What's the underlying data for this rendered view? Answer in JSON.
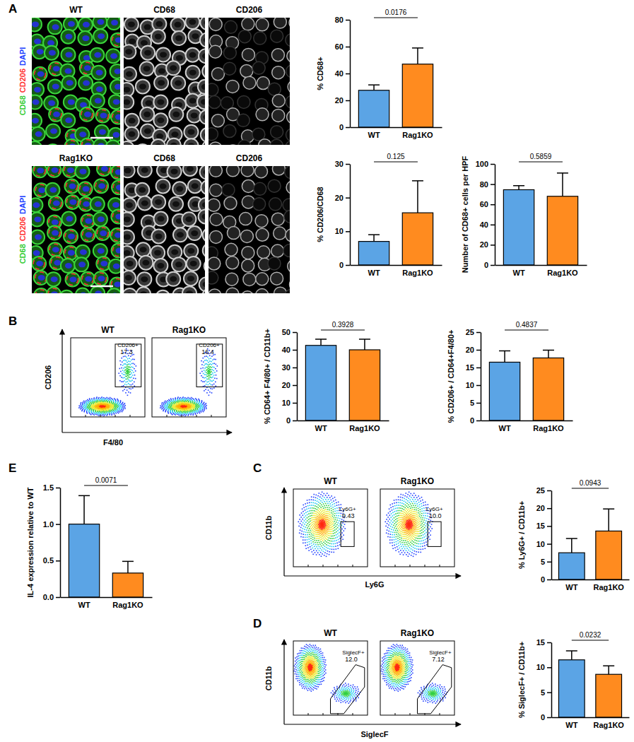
{
  "panel_letters": [
    "A",
    "B",
    "C",
    "D",
    "E"
  ],
  "microscopy": {
    "rows": [
      {
        "label": "WT",
        "channels": [
          "CD68",
          "CD206"
        ]
      },
      {
        "label": "Rag1KO",
        "channels": [
          "CD68",
          "CD206"
        ]
      }
    ],
    "merge_stains": [
      {
        "text": "CD68",
        "color": "#33cc33"
      },
      {
        "text": "CD206",
        "color": "#ff3030"
      },
      {
        "text": "DAPI",
        "color": "#2040ff"
      }
    ]
  },
  "flow": [
    {
      "xlabel": "F4/80",
      "ylabel": "CD206",
      "plots": [
        {
          "title": "WT",
          "gate": "CD206+",
          "gate_value": "17.3"
        },
        {
          "title": "Rag1KO",
          "gate": "CD206+",
          "gate_value": "16.4"
        }
      ]
    },
    {
      "xlabel": "Ly6G",
      "ylabel": "CD11b",
      "plots": [
        {
          "title": "WT",
          "gate": "Ly6G+",
          "gate_value": "9.43"
        },
        {
          "title": "Rag1KO",
          "gate": "Ly6G+",
          "gate_value": "10.0"
        }
      ]
    },
    {
      "xlabel": "SiglecF",
      "ylabel": "CD11b",
      "plots": [
        {
          "title": "WT",
          "gate": "SiglecF+",
          "gate_value": "12.0"
        },
        {
          "title": "Rag1KO",
          "gate": "SiglecF+",
          "gate_value": "7.12"
        }
      ]
    }
  ],
  "chart_data": [
    {
      "type": "bar",
      "ylabel": "% CD68+",
      "categories": [
        "WT",
        "Rag1KO"
      ],
      "values": [
        27.5,
        47
      ],
      "errors": [
        4,
        12
      ],
      "colors": [
        "#5ba4e5",
        "#ff8b1f"
      ],
      "ylim": [
        0,
        80
      ],
      "yticks": [
        0,
        20,
        40,
        60,
        80
      ],
      "annotation": "0.0176"
    },
    {
      "type": "bar",
      "ylabel": "% CD206/CD68",
      "categories": [
        "WT",
        "Rag1KO"
      ],
      "values": [
        7,
        15.5
      ],
      "errors": [
        2,
        9.5
      ],
      "colors": [
        "#5ba4e5",
        "#ff8b1f"
      ],
      "ylim": [
        0,
        30
      ],
      "yticks": [
        0,
        10,
        20,
        30
      ],
      "annotation": "0.125"
    },
    {
      "type": "bar",
      "ylabel": "Number of CD68+ cells per HPF",
      "categories": [
        "WT",
        "Rag1KO"
      ],
      "values": [
        74.5,
        68
      ],
      "errors": [
        4,
        23
      ],
      "colors": [
        "#5ba4e5",
        "#ff8b1f"
      ],
      "ylim": [
        0,
        100
      ],
      "yticks": [
        0,
        20,
        40,
        60,
        80,
        100
      ],
      "annotation": "0.5859"
    },
    {
      "type": "bar",
      "ylabel": "% CD64+ F4/80+ / CD11b+",
      "categories": [
        "WT",
        "Rag1KO"
      ],
      "values": [
        42.5,
        40
      ],
      "errors": [
        3.5,
        6
      ],
      "colors": [
        "#5ba4e5",
        "#ff8b1f"
      ],
      "ylim": [
        0,
        50
      ],
      "yticks": [
        0,
        10,
        20,
        30,
        40,
        50
      ],
      "annotation": "0.3928"
    },
    {
      "type": "bar",
      "ylabel": "% CD206+ / CD64+F4/80+",
      "categories": [
        "WT",
        "Rag1KO"
      ],
      "values": [
        16.5,
        17.7
      ],
      "errors": [
        3.2,
        2.2
      ],
      "colors": [
        "#5ba4e5",
        "#ff8b1f"
      ],
      "ylim": [
        0,
        25
      ],
      "yticks": [
        0,
        5,
        10,
        15,
        20,
        25
      ],
      "annotation": "0.4837"
    },
    {
      "type": "bar",
      "ylabel": "IL-4 expression relative to WT",
      "categories": [
        "WT",
        "Rag1KO"
      ],
      "values": [
        1.0,
        0.33
      ],
      "errors": [
        0.39,
        0.16
      ],
      "colors": [
        "#5ba4e5",
        "#ff8b1f"
      ],
      "ylim": [
        0,
        1.5
      ],
      "yticks": [
        {
          "value": 0,
          "label": "0.0"
        },
        0.5,
        {
          "value": 1,
          "label": "1.0"
        },
        1.5
      ],
      "annotation": "0.0071"
    },
    {
      "type": "bar",
      "ylabel": "% Ly6G+ / CD11b+",
      "categories": [
        "WT",
        "Rag1KO"
      ],
      "values": [
        7.5,
        13.6
      ],
      "errors": [
        4,
        6.2
      ],
      "colors": [
        "#5ba4e5",
        "#ff8b1f"
      ],
      "ylim": [
        0,
        25
      ],
      "yticks": [
        0,
        5,
        10,
        15,
        20,
        25
      ],
      "annotation": "0.0943"
    },
    {
      "type": "bar",
      "ylabel": "% SiglecF+ / CD11b+",
      "categories": [
        "WT",
        "Rag1KO"
      ],
      "values": [
        11.5,
        8.6
      ],
      "errors": [
        1.8,
        1.7
      ],
      "colors": [
        "#5ba4e5",
        "#ff8b1f"
      ],
      "ylim": [
        0,
        15
      ],
      "yticks": [
        0,
        5,
        10,
        15
      ],
      "annotation": "0.0232"
    }
  ]
}
